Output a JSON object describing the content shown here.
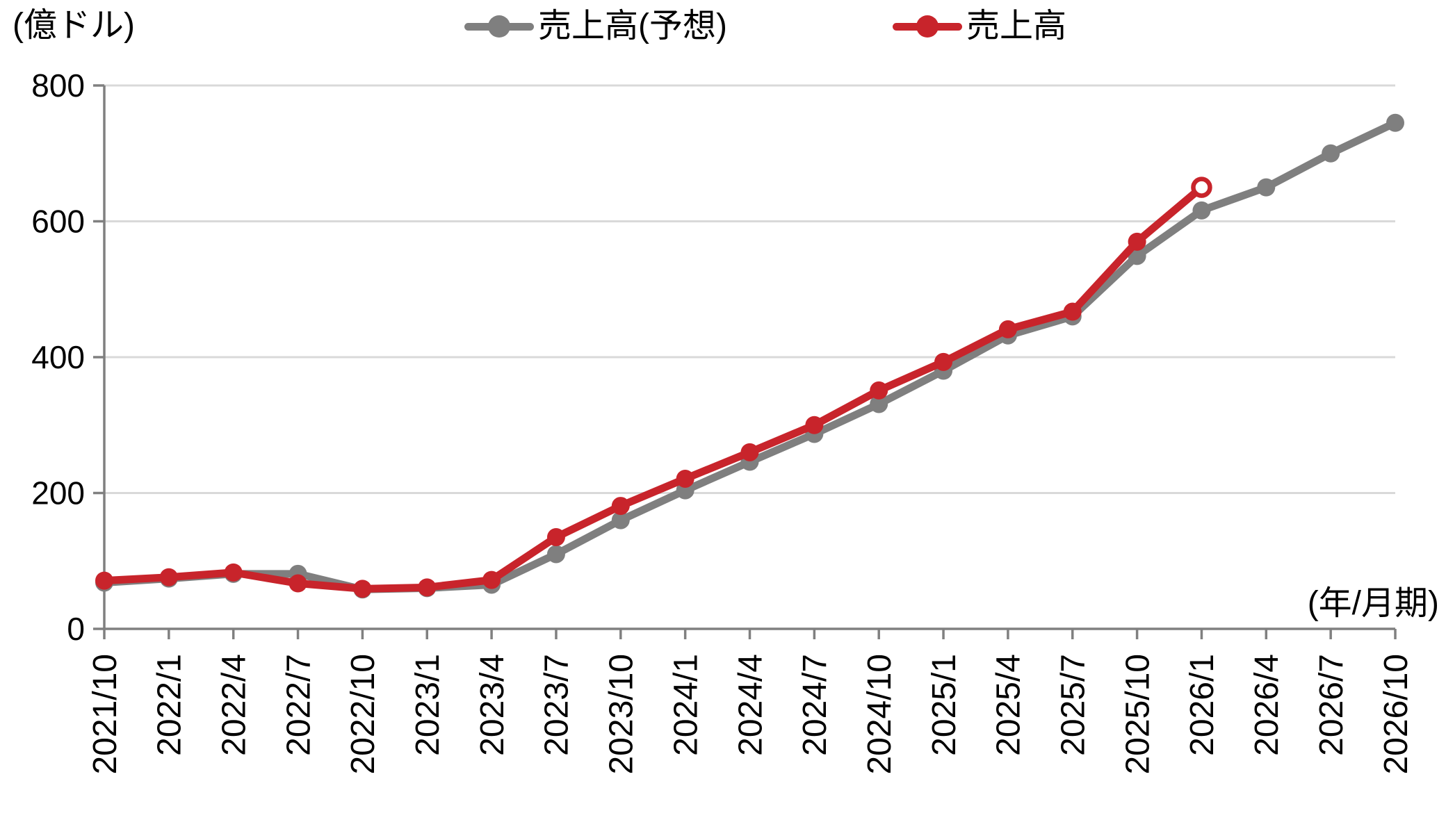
{
  "chart_data": {
    "type": "line",
    "title": "",
    "unit_label": "(億ドル)",
    "xlabel": "(年/月期)",
    "ylabel": "",
    "ylim": [
      0,
      800
    ],
    "yticks": [
      0,
      200,
      400,
      600,
      800
    ],
    "grid": "horizontal",
    "legend_position": "top-center",
    "background_color": "#FFFFFF",
    "grid_color": "#D9D9D9",
    "axis_color": "#808080",
    "text_color": "#000000",
    "categories": [
      "2021/10",
      "2022/1",
      "2022/4",
      "2022/7",
      "2022/10",
      "2023/1",
      "2023/4",
      "2023/7",
      "2023/10",
      "2024/1",
      "2024/4",
      "2024/7",
      "2024/10",
      "2025/1",
      "2025/4",
      "2025/7",
      "2025/10",
      "2026/1",
      "2026/4",
      "2026/7",
      "2026/10"
    ],
    "series": [
      {
        "name": "売上高(予想)",
        "color": "#7F7F7F",
        "marker": "circle",
        "values": [
          68,
          74,
          81,
          81,
          58,
          60,
          65,
          110,
          160,
          204,
          246,
          287,
          331,
          380,
          432,
          460,
          549,
          616,
          650,
          700,
          745
        ]
      },
      {
        "name": "売上高",
        "color": "#C8242B",
        "marker": "circle",
        "open_circle_on_last_point": true,
        "values": [
          71,
          76,
          83,
          67,
          59,
          61,
          72,
          135,
          181,
          221,
          260,
          300,
          351,
          393,
          441,
          467,
          570,
          650,
          null,
          null,
          null
        ]
      }
    ]
  }
}
